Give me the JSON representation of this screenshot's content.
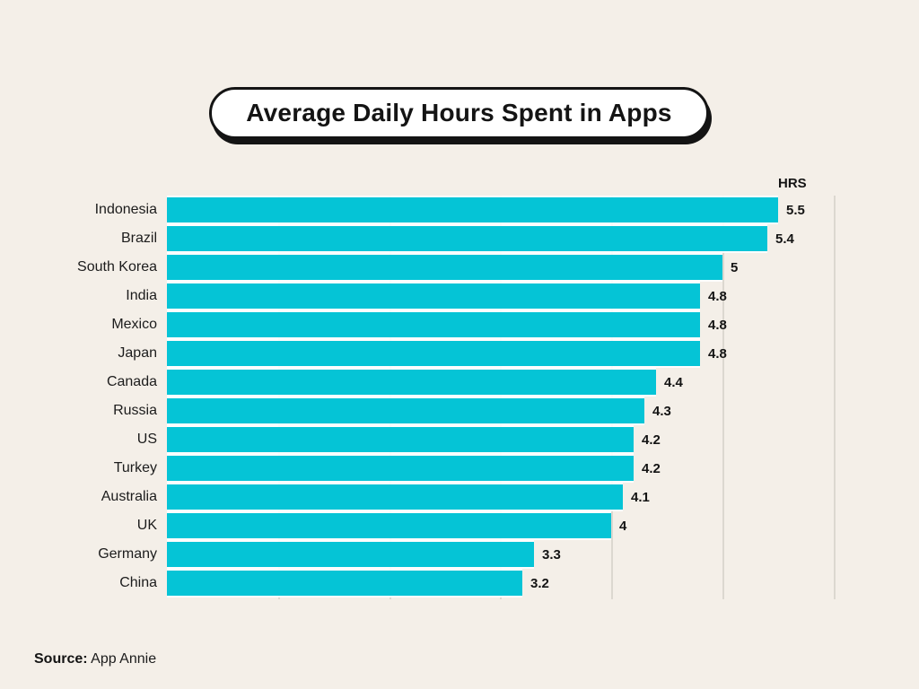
{
  "title": "Average Daily Hours Spent in Apps",
  "units_label": "HRS",
  "source": {
    "label": "Source:",
    "value": "App Annie"
  },
  "colors": {
    "background": "#f4efe8",
    "bar": "#05c4d6",
    "gridline": "#dcd8d0",
    "text": "#141414",
    "pill_background": "#ffffff",
    "pill_border": "#141414"
  },
  "chart_data": {
    "type": "bar",
    "orientation": "horizontal",
    "title": "Average Daily Hours Spent in Apps",
    "xlabel": "HRS",
    "ylabel": "",
    "xlim": [
      0,
      6
    ],
    "gridlines_at": [
      1,
      2,
      3,
      4,
      5,
      6
    ],
    "grid": true,
    "legend": false,
    "categories": [
      "Indonesia",
      "Brazil",
      "South Korea",
      "India",
      "Mexico",
      "Japan",
      "Canada",
      "Russia",
      "US",
      "Turkey",
      "Australia",
      "UK",
      "Germany",
      "China"
    ],
    "values": [
      5.5,
      5.4,
      5,
      4.8,
      4.8,
      4.8,
      4.4,
      4.3,
      4.2,
      4.2,
      4.1,
      4,
      3.3,
      3.2
    ],
    "value_labels": [
      "5.5",
      "5.4",
      "5",
      "4.8",
      "4.8",
      "4.8",
      "4.4",
      "4.3",
      "4.2",
      "4.2",
      "4.1",
      "4",
      "3.3",
      "3.2"
    ]
  }
}
